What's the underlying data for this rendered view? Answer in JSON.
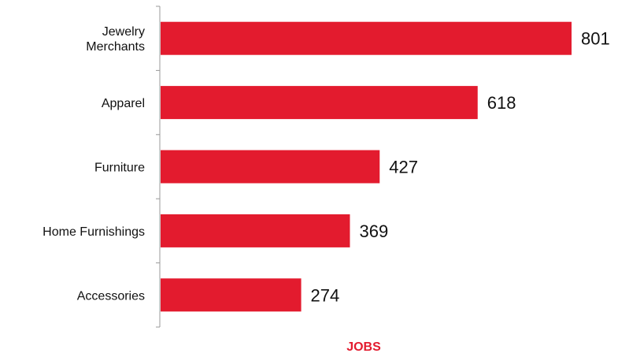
{
  "chart_data": {
    "type": "bar",
    "orientation": "horizontal",
    "categories": [
      "Jewelry Merchants",
      "Apparel",
      "Furniture",
      "Home Furnishings",
      "Accessories"
    ],
    "category_lines": [
      [
        "Jewelry",
        "Merchants"
      ],
      [
        "Apparel"
      ],
      [
        "Furniture"
      ],
      [
        "Home Furnishings"
      ],
      [
        "Accessories"
      ]
    ],
    "values": [
      801,
      618,
      427,
      369,
      274
    ],
    "value_labels": [
      "801",
      "618",
      "427",
      "369",
      "274"
    ],
    "title": "",
    "xlabel": "JOBS",
    "ylabel": "",
    "xlim": [
      0,
      860
    ],
    "grid": false,
    "legend": "none",
    "colors": {
      "bar": "#e31b2e",
      "xlabel": "#e31b2e",
      "axis": "#999999",
      "text": "#111111"
    }
  }
}
